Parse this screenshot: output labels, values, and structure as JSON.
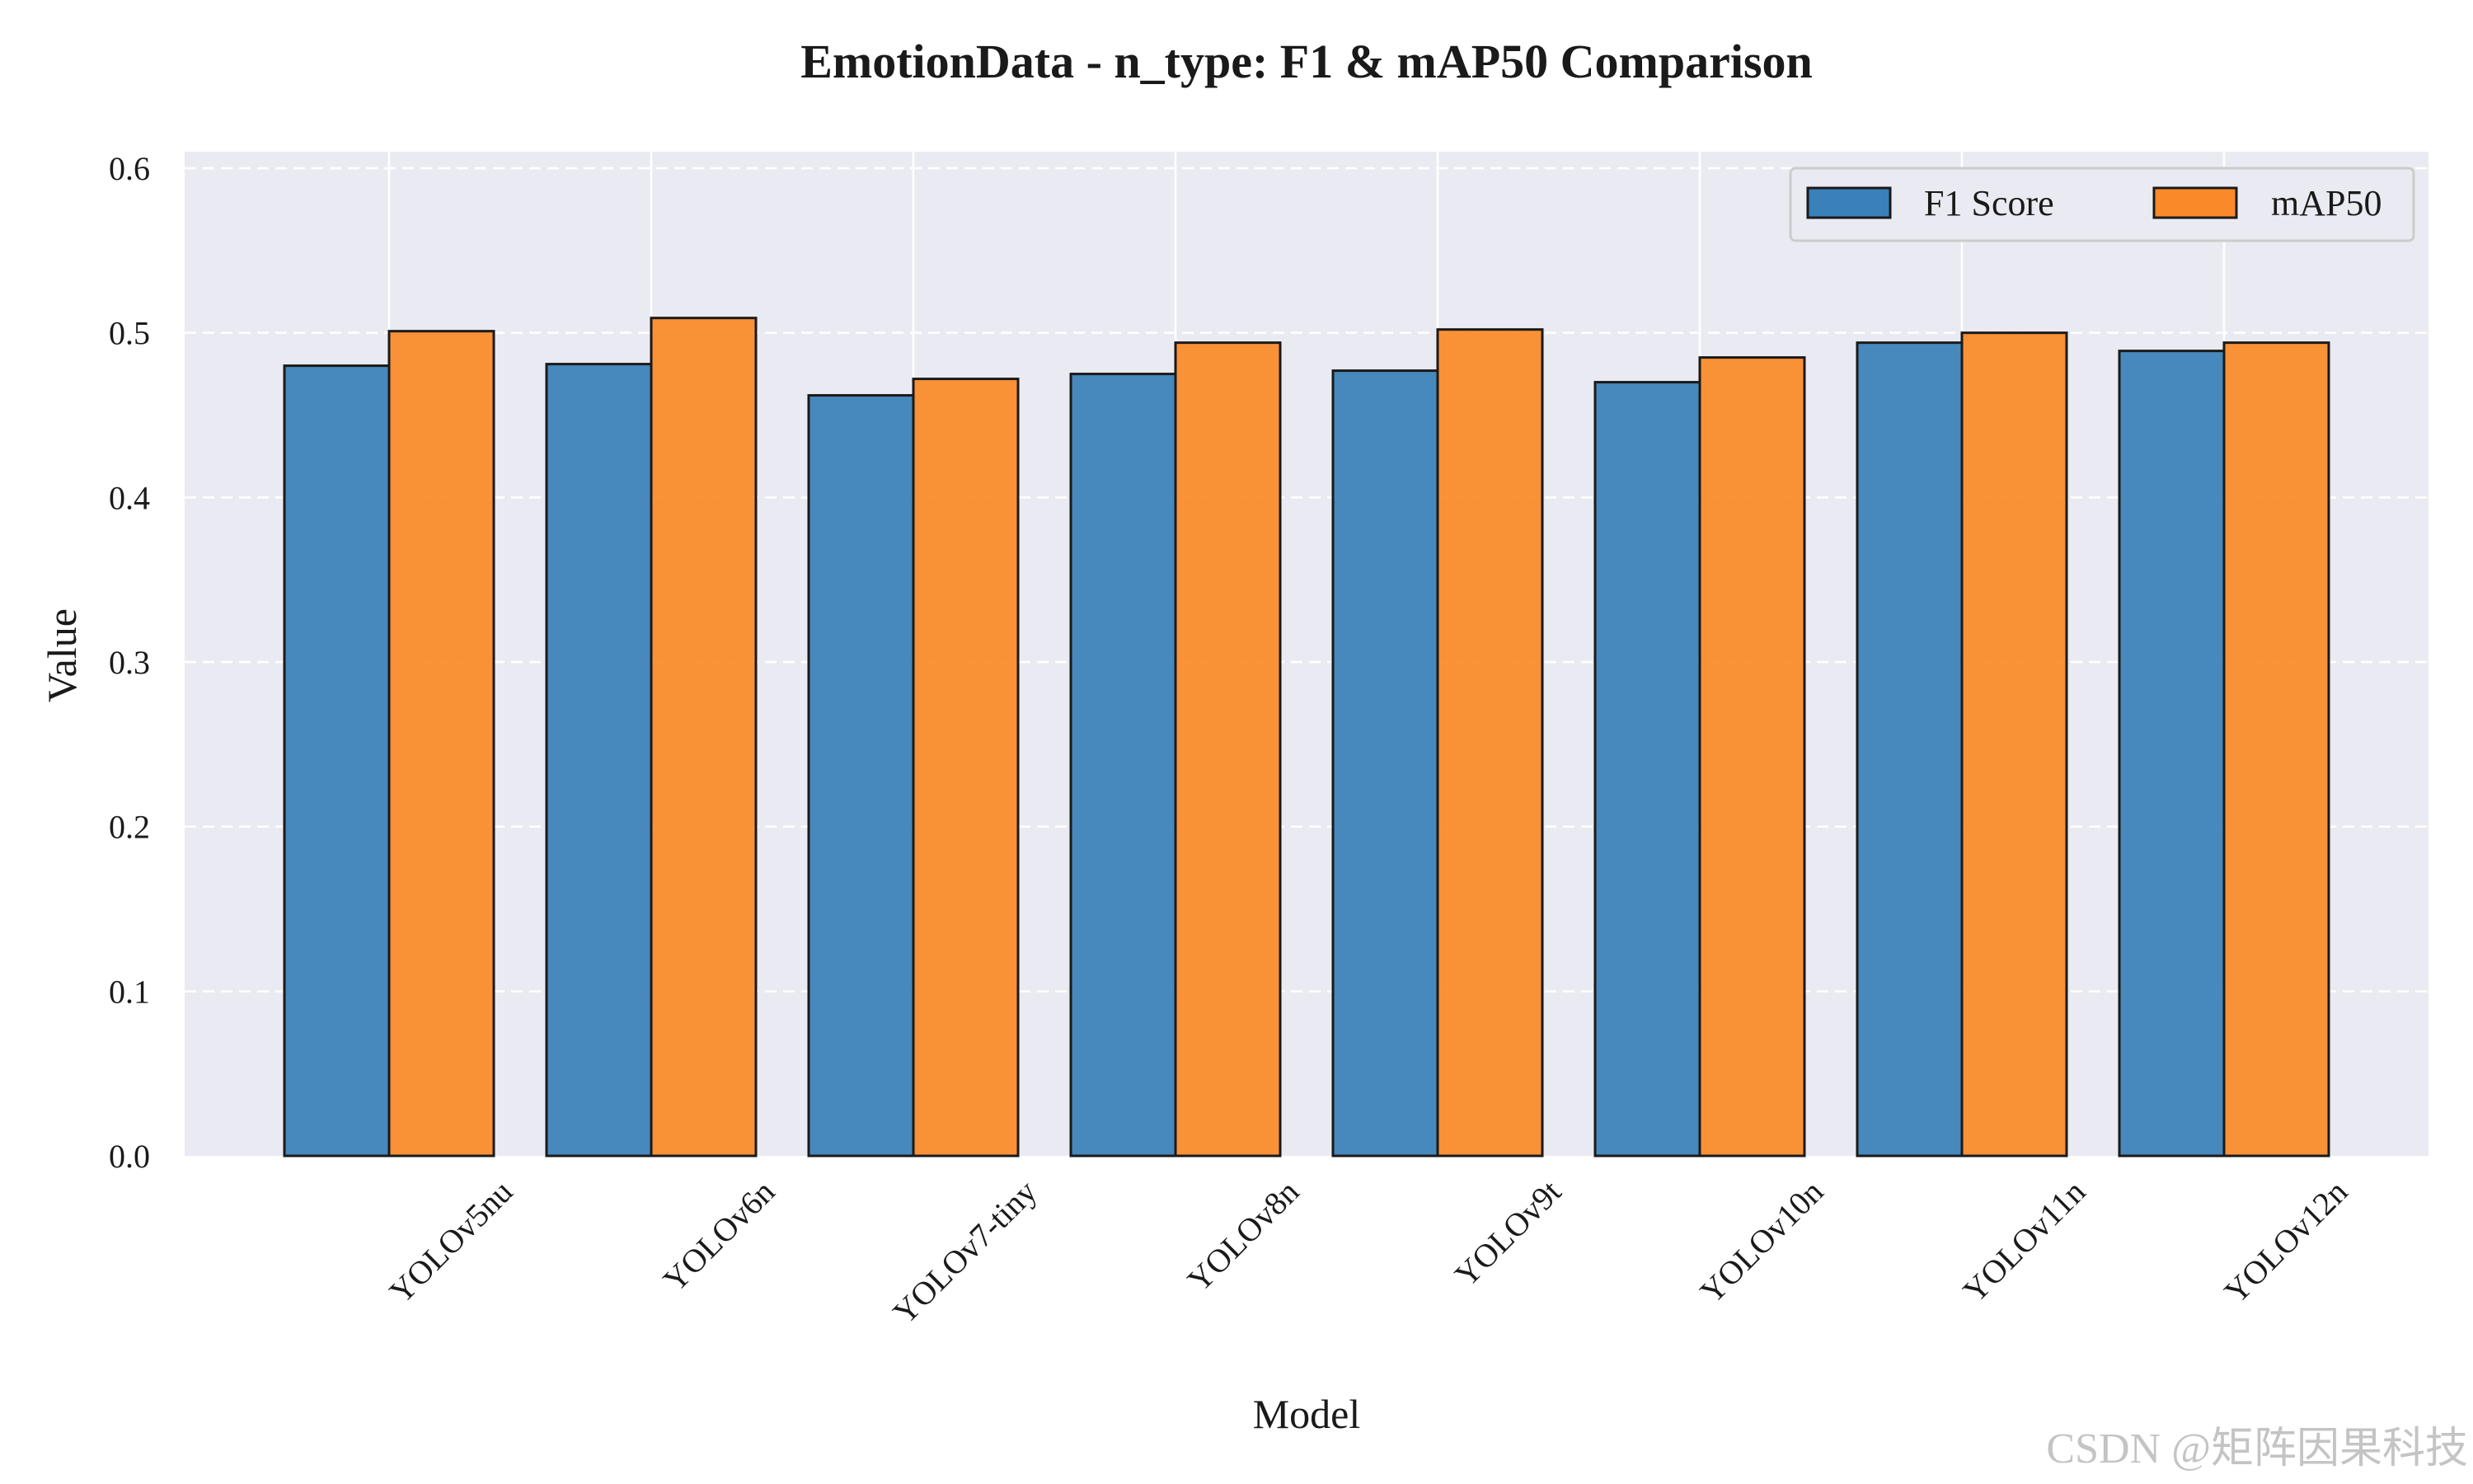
{
  "chart_data": {
    "type": "bar",
    "title": "EmotionData - n_type: F1 & mAP50 Comparison",
    "xlabel": "Model",
    "ylabel": "Value",
    "ylim": [
      0,
      0.6
    ],
    "yticks": [
      "0.0",
      "0.1",
      "0.2",
      "0.3",
      "0.4",
      "0.5",
      "0.6"
    ],
    "categories": [
      "YOLOv5nu",
      "YOLOv6n",
      "YOLOv7-tiny",
      "YOLOv8n",
      "YOLOv9t",
      "YOLOv10n",
      "YOLOv11n",
      "YOLOv12n"
    ],
    "series": [
      {
        "name": "F1 Score",
        "color": "#3a80b9",
        "values": [
          0.48,
          0.481,
          0.462,
          0.475,
          0.477,
          0.47,
          0.494,
          0.489
        ]
      },
      {
        "name": "mAP50",
        "color": "#fa8a29",
        "values": [
          0.501,
          0.509,
          0.472,
          0.494,
          0.502,
          0.485,
          0.5,
          0.494
        ]
      }
    ],
    "grid": true,
    "legend_position": "top-right",
    "background": "#eaeaf2"
  },
  "watermark": "CSDN @矩阵因果科技"
}
